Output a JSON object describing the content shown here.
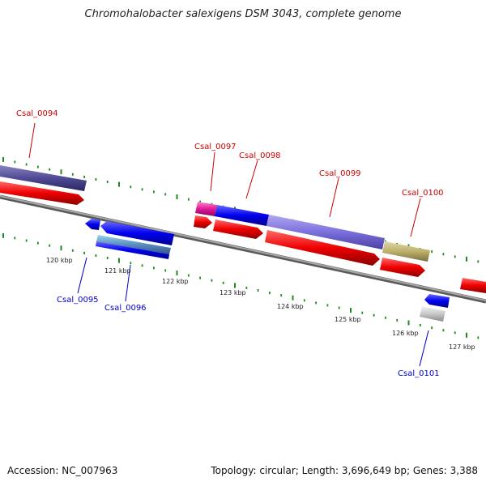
{
  "title": "Chromohalobacter salexigens DSM 3043, complete genome",
  "footer": {
    "accession": "Accession: NC_007963",
    "topology": "Topology: circular; Length: 3,696,649 bp; Genes: 3,388"
  },
  "colors": {
    "forward_label": "#cc0000",
    "reverse_label": "#0000cc",
    "tick": "#1f8a1f",
    "backbone": "#808080"
  },
  "scale_labels": [
    {
      "text": "120 kbp",
      "kbp": 120
    },
    {
      "text": "121 kbp",
      "kbp": 121
    },
    {
      "text": "122 kbp",
      "kbp": 122
    },
    {
      "text": "123 kbp",
      "kbp": 123
    },
    {
      "text": "124 kbp",
      "kbp": 124
    },
    {
      "text": "125 kbp",
      "kbp": 125
    },
    {
      "text": "126 kbp",
      "kbp": 126
    },
    {
      "text": "127 kbp",
      "kbp": 127
    }
  ],
  "gene_labels": {
    "csal_0094": "Csal_0094",
    "csal_0095": "Csal_0095",
    "csal_0096": "Csal_0096",
    "csal_0097": "Csal_0097",
    "csal_0098": "Csal_0098",
    "csal_0099": "Csal_0099",
    "csal_0100": "Csal_0100",
    "csal_0101": "Csal_0101"
  }
}
